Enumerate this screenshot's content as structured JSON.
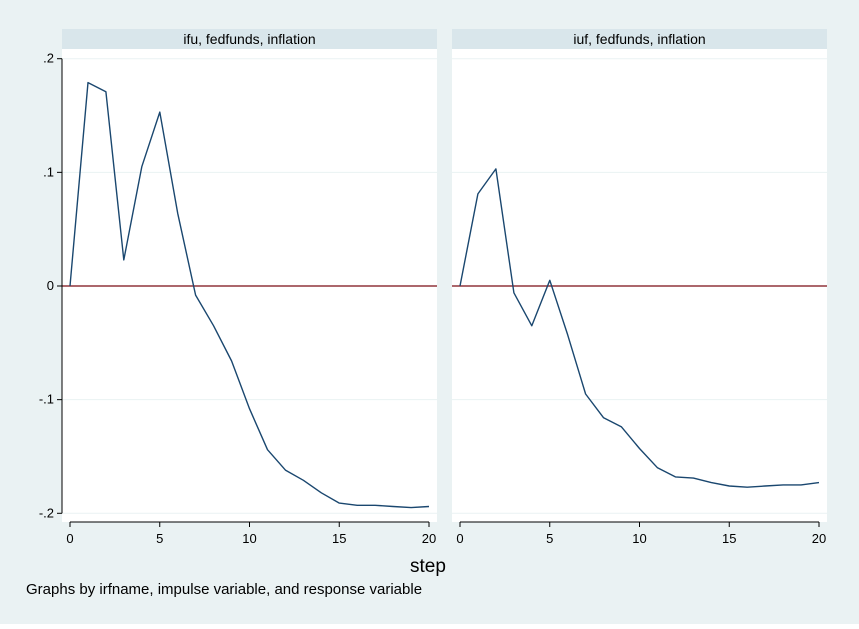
{
  "xlabel": "step",
  "note": "Graphs by irfname, impulse variable, and response variable",
  "colors": {
    "background": "#eaf2f3",
    "plot_bg": "#ffffff",
    "header_bg": "#d9e6eb",
    "series": "#1a476f",
    "zero_line": "#90353b",
    "grid": "#eaf2f3"
  },
  "chart_data": [
    {
      "type": "line",
      "title": "ifu, fedfunds, inflation",
      "xlim": [
        0,
        20
      ],
      "ylim": [
        -0.2,
        0.2
      ],
      "xticks": [
        0,
        5,
        10,
        15,
        20
      ],
      "yticks": [
        -0.2,
        -0.1,
        0,
        0.1,
        0.2
      ],
      "yticklabels": [
        "-.2",
        "-.1",
        "0",
        ".1",
        ".2"
      ],
      "grid": true,
      "reference_line_y": 0,
      "x": [
        0,
        1,
        2,
        3,
        4,
        5,
        6,
        7,
        8,
        9,
        10,
        11,
        12,
        13,
        14,
        15,
        16,
        17,
        18,
        19,
        20
      ],
      "values": [
        0,
        0.179,
        0.171,
        0.023,
        0.105,
        0.153,
        0.064,
        -0.008,
        -0.035,
        -0.066,
        -0.108,
        -0.144,
        -0.162,
        -0.171,
        -0.182,
        -0.191,
        -0.193,
        -0.193,
        -0.194,
        -0.195,
        -0.194
      ]
    },
    {
      "type": "line",
      "title": "iuf, fedfunds, inflation",
      "xlim": [
        0,
        20
      ],
      "ylim": [
        -0.2,
        0.2
      ],
      "xticks": [
        0,
        5,
        10,
        15,
        20
      ],
      "grid": true,
      "reference_line_y": 0,
      "x": [
        0,
        1,
        2,
        3,
        4,
        5,
        6,
        7,
        8,
        9,
        10,
        11,
        12,
        13,
        14,
        15,
        16,
        17,
        18,
        19,
        20
      ],
      "values": [
        0,
        0.081,
        0.103,
        -0.006,
        -0.035,
        0.005,
        -0.043,
        -0.095,
        -0.116,
        -0.124,
        -0.143,
        -0.16,
        -0.168,
        -0.169,
        -0.173,
        -0.176,
        -0.177,
        -0.176,
        -0.175,
        -0.175,
        -0.173
      ]
    }
  ]
}
